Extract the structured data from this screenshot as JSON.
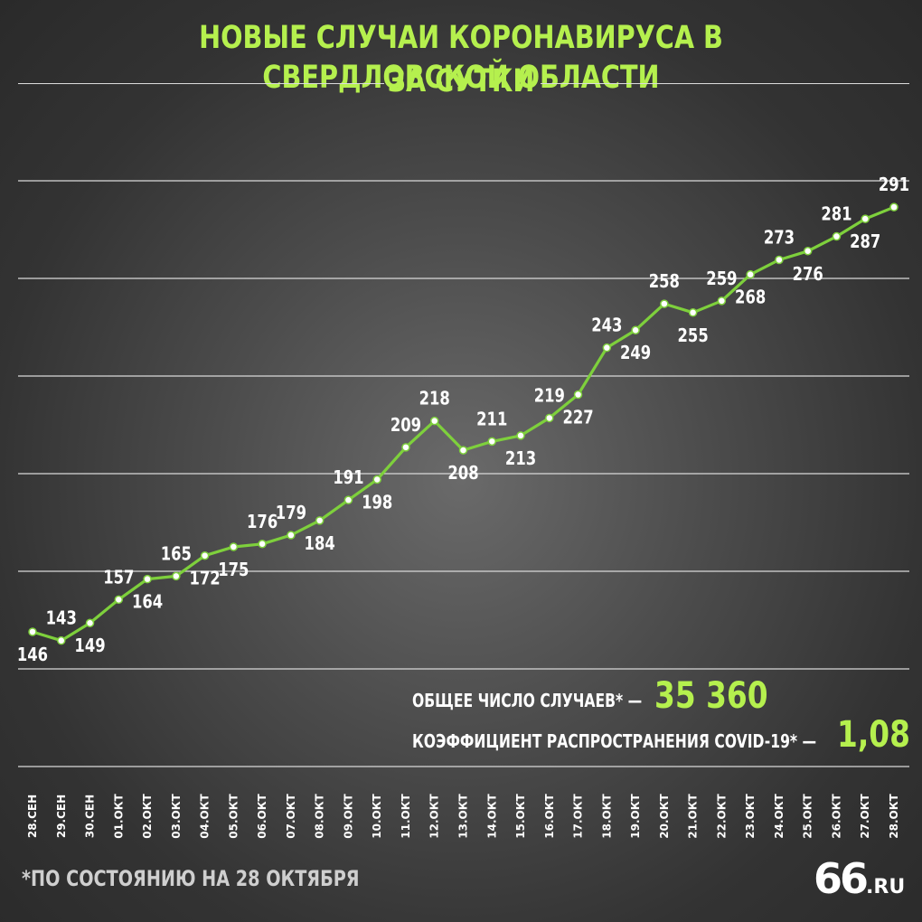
{
  "title": {
    "line1": "НОВЫЕ СЛУЧАИ КОРОНАВИРУСА В СВЕРДЛОВСКОЙ ОБЛАСТИ",
    "line2": "ЗА СУТКИ"
  },
  "stats": {
    "total_label": "ОБЩЕЕ ЧИСЛО СЛУЧАЕВ* —",
    "total_value": "35 360",
    "rate_label": "КОЭФФИЦИЕНТ РАСПРОСТРАНЕНИЯ COVID-19* —",
    "rate_value": "1,08"
  },
  "footnote": "*ПО СОСТОЯНИЮ НА 28 ОКТЯБРЯ",
  "logo": {
    "number": "66",
    "suffix": ".RU"
  },
  "colors": {
    "accent": "#b5f04e",
    "line": "#7ed03c",
    "text": "#ffffff",
    "grid": "#d9d9d9"
  },
  "chart_data": {
    "type": "line",
    "title": "НОВЫЕ СЛУЧАИ КОРОНАВИРУСА В СВЕРДЛОВСКОЙ ОБЛАСТИ ЗА СУТКИ",
    "categories": [
      "28.СЕН",
      "29.СЕН",
      "30.СЕН",
      "01.ОКТ",
      "02.ОКТ",
      "03.ОКТ",
      "04.ОКТ",
      "05.ОКТ",
      "06.ОКТ",
      "07.ОКТ",
      "08.ОКТ",
      "09.ОКТ",
      "10.ОКТ",
      "11.ОКТ",
      "12.ОКТ",
      "13.ОКТ",
      "14.ОКТ",
      "15.ОКТ",
      "16.ОКТ",
      "17.ОКТ",
      "18.ОКТ",
      "19.ОКТ",
      "20.ОКТ",
      "21.ОКТ",
      "22.ОКТ",
      "23.ОКТ",
      "24.ОКТ",
      "25.ОКТ",
      "26.ОКТ",
      "27.ОКТ",
      "28.ОКТ"
    ],
    "values": [
      146,
      143,
      149,
      157,
      164,
      165,
      172,
      175,
      176,
      179,
      184,
      191,
      198,
      209,
      218,
      208,
      211,
      213,
      219,
      227,
      243,
      249,
      258,
      255,
      259,
      268,
      273,
      276,
      281,
      287,
      291
    ],
    "label_positions": [
      "below",
      "above",
      "below",
      "above",
      "below",
      "above",
      "below",
      "below",
      "above",
      "above",
      "below",
      "above",
      "below",
      "above",
      "above",
      "below",
      "above",
      "below",
      "above",
      "below",
      "above",
      "below",
      "above",
      "below",
      "above",
      "below",
      "above",
      "below",
      "above",
      "below",
      "above"
    ],
    "xlabel": "",
    "ylabel": "",
    "ylim": [
      100,
      300
    ],
    "grid": true,
    "legend": "none"
  }
}
